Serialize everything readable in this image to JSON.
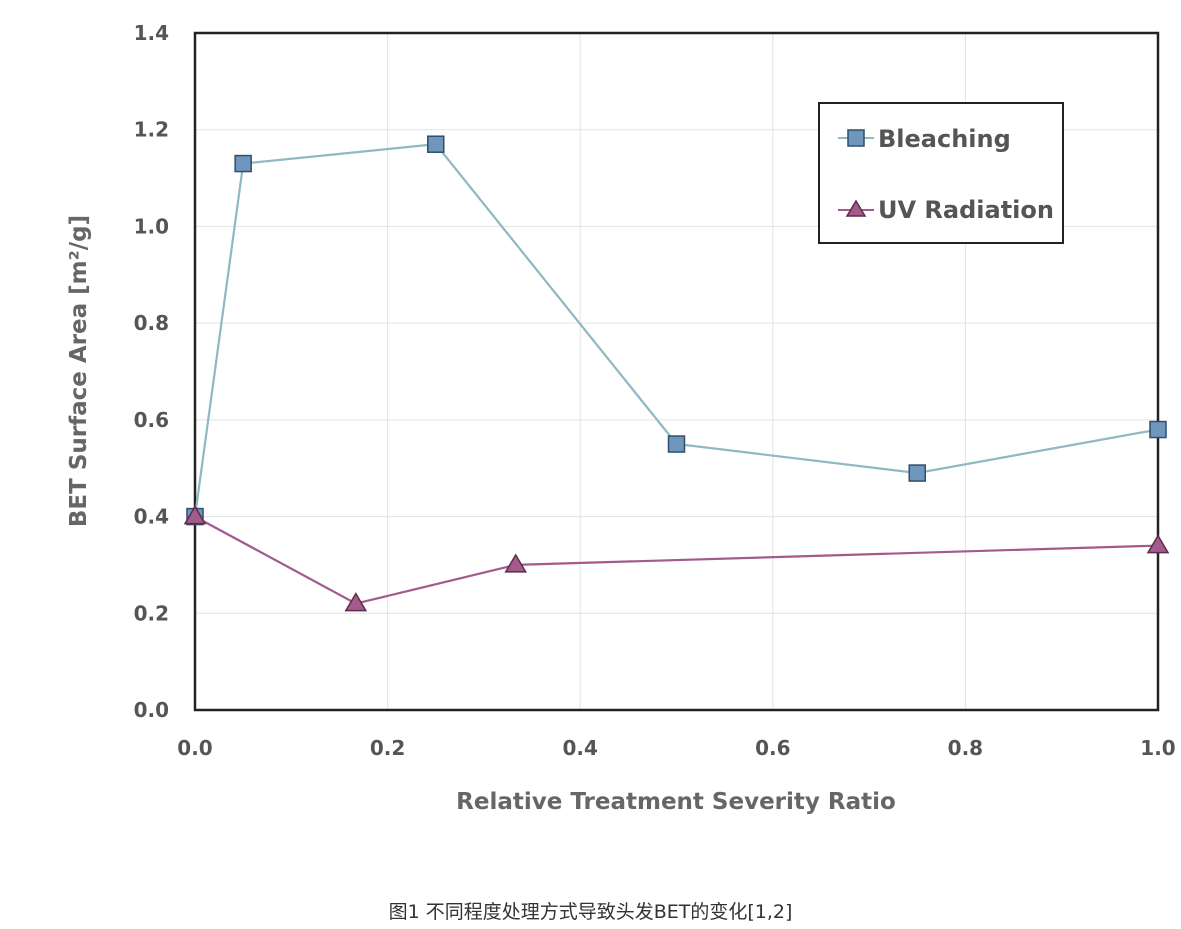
{
  "chart_data": {
    "type": "line",
    "xlabel": "Relative Treatment Severity Ratio",
    "ylabel": "BET Surface Area [m²/g]",
    "xlim": [
      0.0,
      1.0
    ],
    "ylim": [
      0.0,
      1.4
    ],
    "xticks": [
      "0.0",
      "0.2",
      "0.4",
      "0.6",
      "0.8",
      "1.0"
    ],
    "yticks": [
      "0.0",
      "0.2",
      "0.4",
      "0.6",
      "0.8",
      "1.0",
      "1.2",
      "1.4"
    ],
    "grid": true,
    "legend_position": "top-right",
    "series": [
      {
        "name": "Bleaching",
        "marker": "square",
        "line_color": "#8fb8c2",
        "marker_fill": "#6f97be",
        "points": [
          {
            "x": 0.0,
            "y": 0.4
          },
          {
            "x": 0.05,
            "y": 1.13
          },
          {
            "x": 0.25,
            "y": 1.17
          },
          {
            "x": 0.5,
            "y": 0.55
          },
          {
            "x": 0.75,
            "y": 0.49
          },
          {
            "x": 1.0,
            "y": 0.58
          }
        ]
      },
      {
        "name": "UV Radiation",
        "marker": "triangle",
        "line_color": "#a35a8c",
        "marker_fill": "#a35a8c",
        "points": [
          {
            "x": 0.0,
            "y": 0.4
          },
          {
            "x": 0.167,
            "y": 0.22
          },
          {
            "x": 0.333,
            "y": 0.3
          },
          {
            "x": 1.0,
            "y": 0.34
          }
        ]
      }
    ]
  },
  "caption": "图1   不同程度处理方式导致头发BET的变化[1,2]"
}
